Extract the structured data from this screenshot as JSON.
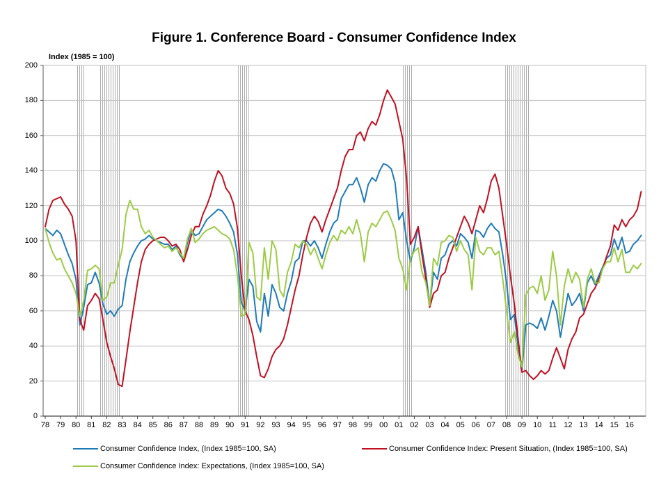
{
  "title": "Figure 1. Conference Board - Consumer Confidence Index",
  "axis_note": "Index (1985 = 100)",
  "legend": [
    {
      "id": "cci",
      "label": "Consumer Confidence Index, (Index 1985=100, SA)",
      "color": "#1F7AB8"
    },
    {
      "id": "present",
      "label": "Consumer Confidence Index: Present Situation, (Index 1985=100, SA)",
      "color": "#C01022"
    },
    {
      "id": "expectations",
      "label": "Consumer Confidence Index: Expectations, (Index 1985=100, SA)",
      "color": "#9BCB43"
    }
  ],
  "chart_data": {
    "type": "line",
    "title": "Figure 1. Conference Board - Consumer Confidence Index",
    "ylabel": "Index (1985 = 100)",
    "ylim": [
      0,
      200
    ],
    "y_ticks": [
      0,
      20,
      40,
      60,
      80,
      100,
      120,
      140,
      160,
      180,
      200
    ],
    "x_tick_labels": [
      "78",
      "79",
      "80",
      "81",
      "82",
      "83",
      "84",
      "85",
      "86",
      "87",
      "88",
      "89",
      "90",
      "91",
      "92",
      "93",
      "94",
      "95",
      "96",
      "97",
      "98",
      "99",
      "00",
      "01",
      "02",
      "03",
      "04",
      "05",
      "06",
      "07",
      "08",
      "09",
      "10",
      "11",
      "12",
      "13",
      "14",
      "15",
      "16"
    ],
    "x_start_year": 1978,
    "points_per_year": 4,
    "grid": true,
    "legend_position": "bottom",
    "recession_bands_years": [
      [
        1980.0,
        1980.58
      ],
      [
        1981.54,
        1982.92
      ],
      [
        1990.54,
        1991.25
      ],
      [
        2001.17,
        2001.92
      ],
      [
        2007.92,
        2009.5
      ]
    ],
    "series": [
      {
        "name": "Consumer Confidence Index, (Index 1985=100, SA)",
        "color": "#1F7AB8",
        "values": [
          107,
          105,
          103,
          106,
          104,
          98,
          92,
          87,
          78,
          52,
          62,
          75,
          76,
          82,
          76,
          64,
          58,
          60,
          57,
          61,
          63,
          78,
          88,
          93,
          97,
          100,
          101,
          103,
          101,
          100,
          99,
          98,
          98,
          95,
          97,
          92,
          89,
          99,
          106,
          103,
          104,
          108,
          112,
          114,
          116,
          118,
          117,
          114,
          110,
          105,
          92,
          65,
          60,
          78,
          74,
          54,
          48,
          70,
          57,
          75,
          70,
          62,
          60,
          70,
          77,
          88,
          90,
          100,
          100,
          97,
          100,
          96,
          90,
          98,
          105,
          110,
          112,
          124,
          128,
          132,
          132,
          136,
          130,
          122,
          132,
          136,
          134,
          140,
          144,
          143,
          141,
          133,
          112,
          116,
          100,
          88,
          96,
          108,
          95,
          82,
          63,
          82,
          78,
          90,
          92,
          98,
          100,
          97,
          104,
          102,
          99,
          90,
          106,
          105,
          102,
          107,
          110,
          107,
          105,
          92,
          76,
          55,
          58,
          40,
          26,
          52,
          53,
          52,
          50,
          56,
          49,
          57,
          66,
          60,
          45,
          58,
          70,
          63,
          66,
          70,
          60,
          76,
          80,
          75,
          80,
          85,
          90,
          92,
          101,
          95,
          102,
          93,
          94,
          98,
          100,
          103
        ]
      },
      {
        "name": "Consumer Confidence Index: Present Situation, (Index 1985=100, SA)",
        "color": "#C01022",
        "values": [
          108,
          118,
          123,
          124,
          125,
          121,
          118,
          114,
          100,
          55,
          49,
          63,
          66,
          70,
          67,
          55,
          42,
          34,
          27,
          18,
          17,
          32,
          48,
          62,
          76,
          88,
          95,
          98,
          100,
          101,
          102,
          102,
          100,
          97,
          98,
          95,
          88,
          95,
          103,
          108,
          108,
          115,
          120,
          126,
          134,
          140,
          137,
          130,
          127,
          121,
          107,
          80,
          60,
          55,
          46,
          34,
          23,
          22,
          27,
          34,
          38,
          40,
          44,
          52,
          62,
          72,
          80,
          92,
          102,
          110,
          114,
          111,
          105,
          112,
          118,
          124,
          130,
          140,
          148,
          152,
          152,
          160,
          162,
          157,
          164,
          168,
          166,
          172,
          180,
          186,
          182,
          178,
          168,
          158,
          135,
          98,
          102,
          108,
          92,
          78,
          62,
          70,
          72,
          80,
          82,
          90,
          96,
          102,
          108,
          114,
          110,
          104,
          112,
          120,
          116,
          124,
          134,
          138,
          130,
          114,
          98,
          80,
          64,
          44,
          25,
          26,
          23,
          21,
          23,
          26,
          24,
          26,
          33,
          39,
          33,
          27,
          38,
          44,
          48,
          56,
          58,
          64,
          70,
          73,
          78,
          84,
          91,
          97,
          109,
          106,
          112,
          108,
          112,
          114,
          118,
          128
        ]
      },
      {
        "name": "Consumer Confidence Index: Expectations, (Index 1985=100, SA)",
        "color": "#9BCB43",
        "values": [
          107,
          99,
          93,
          89,
          90,
          84,
          80,
          76,
          70,
          57,
          66,
          83,
          84,
          86,
          84,
          66,
          68,
          76,
          76,
          86,
          95,
          115,
          123,
          118,
          118,
          108,
          104,
          106,
          102,
          100,
          98,
          96,
          97,
          94,
          96,
          93,
          90,
          101,
          107,
          99,
          101,
          104,
          106,
          107,
          108,
          106,
          104,
          103,
          101,
          95,
          80,
          57,
          58,
          99,
          93,
          68,
          66,
          96,
          78,
          100,
          95,
          72,
          68,
          82,
          88,
          98,
          96,
          100,
          98,
          92,
          96,
          90,
          84,
          92,
          99,
          103,
          100,
          106,
          104,
          108,
          104,
          112,
          104,
          88,
          105,
          110,
          108,
          112,
          116,
          117,
          112,
          106,
          90,
          84,
          72,
          90,
          94,
          96,
          82,
          76,
          63,
          90,
          86,
          99,
          100,
          103,
          102,
          94,
          100,
          95,
          92,
          72,
          102,
          94,
          92,
          96,
          96,
          92,
          94,
          78,
          60,
          42,
          48,
          35,
          28,
          69,
          73,
          74,
          70,
          80,
          66,
          72,
          94,
          80,
          52,
          74,
          84,
          76,
          82,
          78,
          62,
          78,
          84,
          76,
          76,
          84,
          88,
          88,
          96,
          88,
          95,
          82,
          82,
          86,
          84,
          87
        ]
      }
    ]
  }
}
